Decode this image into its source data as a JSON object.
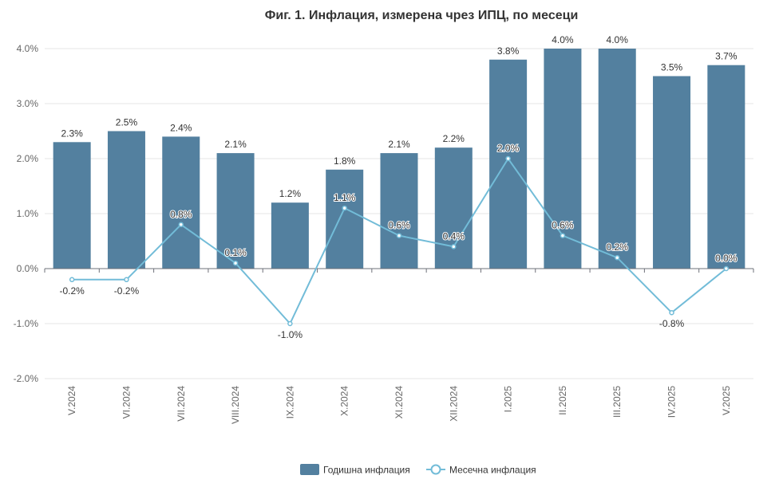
{
  "chart_data": {
    "type": "bar",
    "title": "Фиг. 1. Инфлация, измерена чрез ИПЦ, по месеци",
    "categories": [
      "V.2024",
      "VI.2024",
      "VII.2024",
      "VIII.2024",
      "IX.2024",
      "X.2024",
      "XI.2024",
      "XII.2024",
      "I.2025",
      "II.2025",
      "III.2025",
      "IV.2025",
      "V.2025"
    ],
    "series": [
      {
        "name": "Годишна инфлация",
        "type": "bar",
        "color": "#53809f",
        "values": [
          2.3,
          2.5,
          2.4,
          2.1,
          1.2,
          1.8,
          2.1,
          2.2,
          3.8,
          4.0,
          4.0,
          3.5,
          3.7
        ],
        "labels": [
          "2.3%",
          "2.5%",
          "2.4%",
          "2.1%",
          "1.2%",
          "1.8%",
          "2.1%",
          "2.2%",
          "3.8%",
          "4.0%",
          "4.0%",
          "3.5%",
          "3.7%"
        ]
      },
      {
        "name": "Месечна инфлация",
        "type": "line",
        "color": "#72bcd8",
        "values": [
          -0.2,
          -0.2,
          0.8,
          0.1,
          -1.0,
          1.1,
          0.6,
          0.4,
          2.0,
          0.6,
          0.2,
          -0.8,
          0.0
        ],
        "labels": [
          "-0.2%",
          "-0.2%",
          "0.8%",
          "0.1%",
          "-1.0%",
          "1.1%",
          "0.6%",
          "0.4%",
          "2.0%",
          "0.6%",
          "0.2%",
          "-0.8%",
          "0.0%"
        ]
      }
    ],
    "yticks": [
      "4.0%",
      "3.0%",
      "2.0%",
      "1.0%",
      "0.0%",
      "-1.0%",
      "-2.0%"
    ],
    "ytick_values": [
      4,
      3,
      2,
      1,
      0,
      -1,
      -2
    ],
    "ylim": [
      -2,
      4
    ],
    "grid": true,
    "legend_position": "bottom-center"
  }
}
